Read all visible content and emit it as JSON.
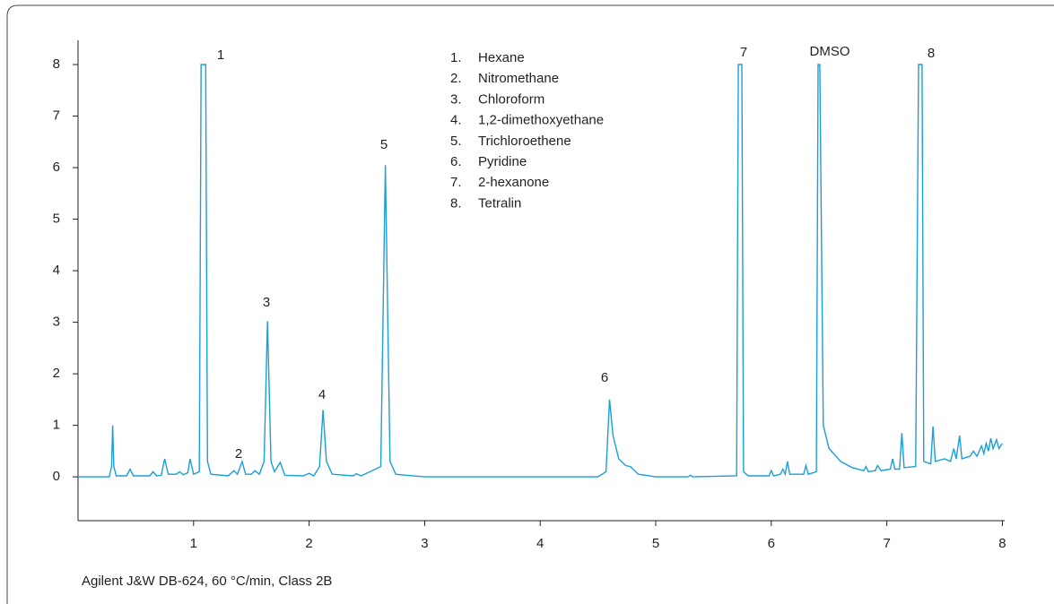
{
  "chart_data": {
    "type": "line",
    "color": "#1c9fd6",
    "caption": "Agilent J&W DB-624, 60 °C/min, Class 2B",
    "xlim": [
      0,
      8.02
    ],
    "ylim": [
      -0.85,
      8.47
    ],
    "xticks": [
      1,
      2,
      3,
      4,
      5,
      6,
      7,
      8
    ],
    "yticks": [
      0,
      1,
      2,
      3,
      4,
      5,
      6,
      7,
      8
    ],
    "peak_labels": [
      "1",
      "2",
      "3",
      "4",
      "5",
      "6",
      "7",
      "DMSO",
      "8"
    ],
    "legend_items": [
      {
        "number": "1.",
        "name": "Hexane"
      },
      {
        "number": "2.",
        "name": "Nitromethane"
      },
      {
        "number": "3.",
        "name": "Chloroform"
      },
      {
        "number": "4.",
        "name": "1,2-dimethoxyethane"
      },
      {
        "number": "5.",
        "name": "Trichloroethene"
      },
      {
        "number": "6.",
        "name": "Pyridine"
      },
      {
        "number": "7.",
        "name": "2-hexanone"
      },
      {
        "number": "8.",
        "name": "Tetralin"
      }
    ],
    "x": [
      0.0,
      0.27,
      0.29,
      0.3,
      0.31,
      0.33,
      0.42,
      0.45,
      0.48,
      0.62,
      0.65,
      0.68,
      0.72,
      0.75,
      0.78,
      0.85,
      0.88,
      0.91,
      0.95,
      0.97,
      1.0,
      1.05,
      1.065,
      1.105,
      1.12,
      1.15,
      1.3,
      1.35,
      1.38,
      1.42,
      1.45,
      1.5,
      1.53,
      1.57,
      1.61,
      1.64,
      1.67,
      1.7,
      1.75,
      1.79,
      1.95,
      2.0,
      2.04,
      2.09,
      2.12,
      2.15,
      2.2,
      2.38,
      2.41,
      2.45,
      2.62,
      2.66,
      2.7,
      2.75,
      2.85,
      3.0,
      4.5,
      4.57,
      4.6,
      4.63,
      4.68,
      4.74,
      4.78,
      4.85,
      5.0,
      5.28,
      5.3,
      5.32,
      5.7,
      5.715,
      5.745,
      5.76,
      5.8,
      5.98,
      6.0,
      6.02,
      6.08,
      6.1,
      6.12,
      6.14,
      6.16,
      6.28,
      6.3,
      6.32,
      6.39,
      6.405,
      6.42,
      6.45,
      6.5,
      6.6,
      6.7,
      6.8,
      6.82,
      6.84,
      6.9,
      6.92,
      6.95,
      7.03,
      7.05,
      7.07,
      7.11,
      7.13,
      7.15,
      7.25,
      7.275,
      7.305,
      7.32,
      7.38,
      7.4,
      7.42,
      7.5,
      7.55,
      7.58,
      7.6,
      7.63,
      7.65,
      7.72,
      7.75,
      7.78,
      7.82,
      7.84,
      7.86,
      7.88,
      7.9,
      7.92,
      7.95,
      7.97,
      8.0
    ],
    "values": [
      0,
      0,
      0.2,
      1.0,
      0.2,
      0.02,
      0.02,
      0.15,
      0.02,
      0.02,
      0.1,
      0.02,
      0.03,
      0.35,
      0.05,
      0.05,
      0.1,
      0.04,
      0.08,
      0.35,
      0.05,
      0.1,
      8,
      8,
      0.3,
      0.05,
      0.02,
      0.12,
      0.05,
      0.3,
      0.05,
      0.05,
      0.12,
      0.05,
      0.3,
      3.02,
      0.3,
      0.1,
      0.28,
      0.03,
      0.02,
      0.07,
      0.02,
      0.2,
      1.3,
      0.3,
      0.05,
      0.02,
      0.06,
      0.02,
      0.2,
      6.05,
      0.3,
      0.05,
      0.03,
      0,
      0,
      0.1,
      1.5,
      0.8,
      0.35,
      0.22,
      0.2,
      0.05,
      0,
      0,
      0.03,
      0,
      0.02,
      8,
      8,
      0.1,
      0.02,
      0.02,
      0.12,
      0.02,
      0.05,
      0.15,
      0.05,
      0.3,
      0.05,
      0.05,
      0.22,
      0.05,
      0.1,
      8,
      8,
      1.0,
      0.55,
      0.3,
      0.18,
      0.12,
      0.2,
      0.1,
      0.12,
      0.22,
      0.12,
      0.15,
      0.35,
      0.15,
      0.15,
      0.85,
      0.18,
      0.2,
      8,
      8,
      0.3,
      0.25,
      0.98,
      0.3,
      0.35,
      0.3,
      0.55,
      0.35,
      0.8,
      0.35,
      0.4,
      0.5,
      0.4,
      0.6,
      0.45,
      0.65,
      0.5,
      0.75,
      0.55,
      0.72,
      0.55,
      0.65
    ]
  }
}
